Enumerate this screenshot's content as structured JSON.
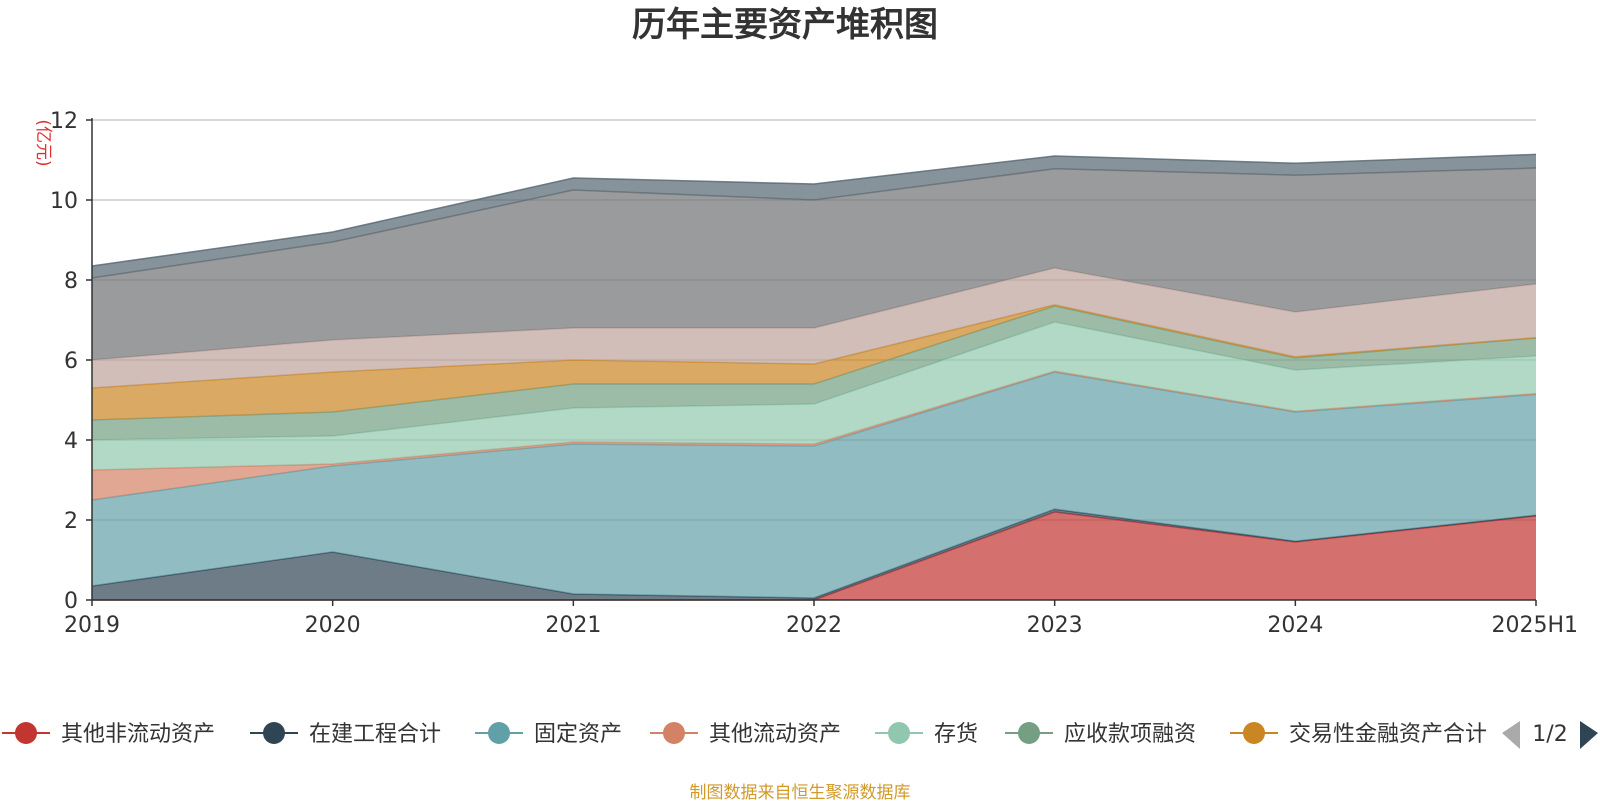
{
  "chart_data": {
    "type": "area",
    "title": "历年主要资产堆积图",
    "ylabel": "(亿元)",
    "categories": [
      "2019",
      "2020",
      "2021",
      "2022",
      "2023",
      "2024",
      "2025H1"
    ],
    "ylim": [
      0,
      12
    ],
    "yticks": [
      0,
      2,
      4,
      6,
      8,
      10,
      12
    ],
    "grid": true,
    "stacked": true,
    "series": [
      {
        "name": "其他非流动资产",
        "color": "#c23531",
        "values": [
          0,
          0,
          0,
          0,
          2.2,
          1.45,
          2.1
        ]
      },
      {
        "name": "在建工程合计",
        "color": "#2f4554",
        "values": [
          0.35,
          1.2,
          0.15,
          0.05,
          0.07,
          0.02,
          0.02
        ]
      },
      {
        "name": "固定资产",
        "color": "#61a0a8",
        "values": [
          2.15,
          2.15,
          3.75,
          3.8,
          3.43,
          3.23,
          3.02
        ]
      },
      {
        "name": "其他流动资产",
        "color": "#d48265",
        "values": [
          0.75,
          0.05,
          0.05,
          0.05,
          0.02,
          0.02,
          0.02
        ]
      },
      {
        "name": "存货",
        "color": "#91c7ae",
        "values": [
          0.75,
          0.7,
          0.85,
          1.0,
          1.23,
          1.03,
          0.94
        ]
      },
      {
        "name": "应收款项融资",
        "color": "#749f83",
        "values": [
          0.5,
          0.6,
          0.6,
          0.5,
          0.4,
          0.3,
          0.45
        ]
      },
      {
        "name": "交易性金融资产合计",
        "color": "#ca8622",
        "values": [
          0.8,
          1.0,
          0.6,
          0.5,
          0.03,
          0.03,
          0.01
        ]
      },
      {
        "name": "",
        "color": "#bda29a",
        "values": [
          0.7,
          0.8,
          0.8,
          0.9,
          0.92,
          1.12,
          1.34
        ]
      },
      {
        "name": "",
        "color": "#6e7074",
        "values": [
          2.05,
          2.45,
          3.45,
          3.2,
          2.48,
          3.42,
          2.9
        ]
      },
      {
        "name": "",
        "color": "#546570",
        "values": [
          0.3,
          0.25,
          0.3,
          0.4,
          0.32,
          0.3,
          0.34
        ]
      }
    ]
  },
  "legend": {
    "page_indicator": "1/2",
    "items": [
      "其他非流动资产",
      "在建工程合计",
      "固定资产",
      "其他流动资产",
      "存货",
      "应收款项融资",
      "交易性金融资产合计"
    ]
  },
  "footer": "制图数据来自恒生聚源数据库"
}
